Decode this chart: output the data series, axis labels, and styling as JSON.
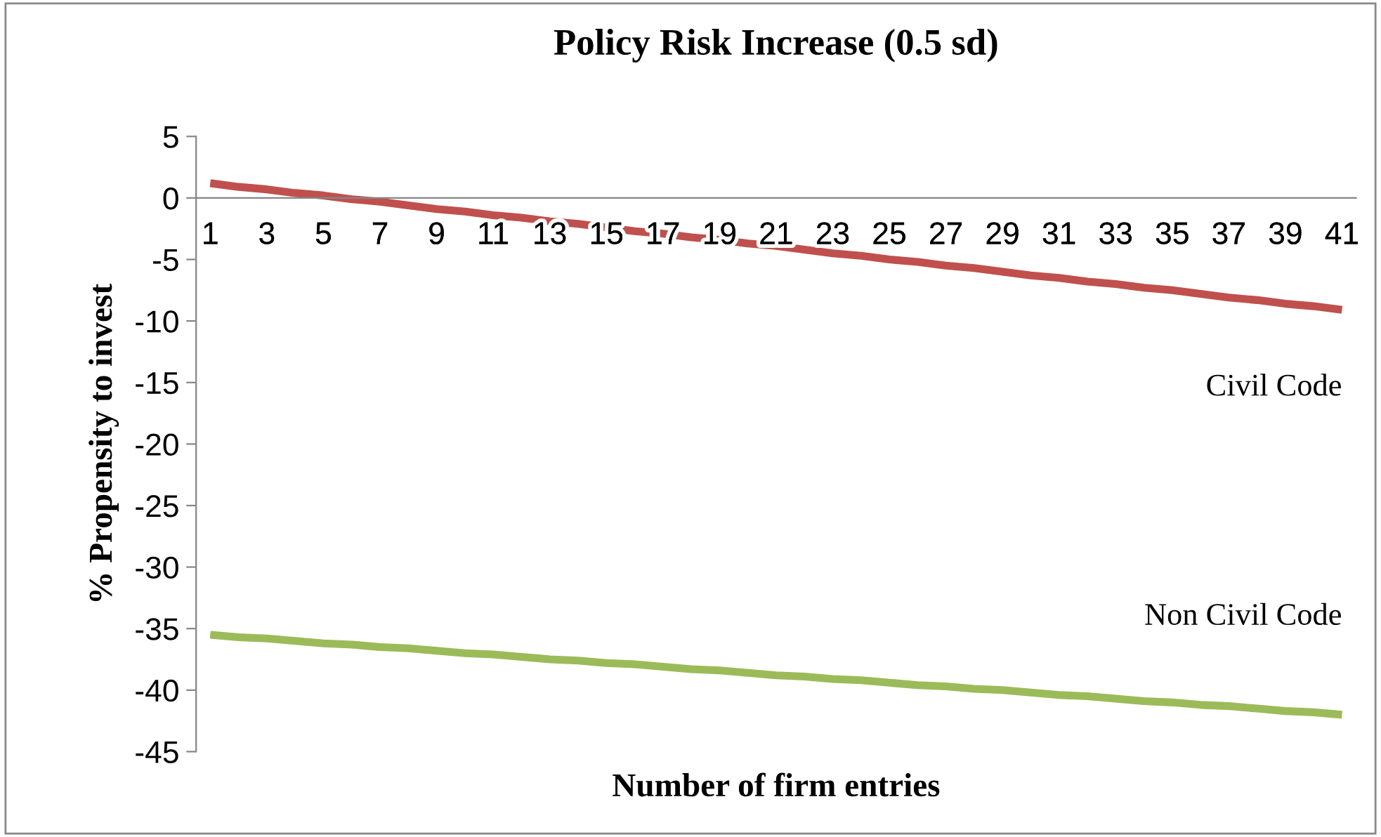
{
  "chart_data": {
    "type": "line",
    "title": "Policy Risk Increase (0.5 sd)",
    "xlabel": "Number of firm entries",
    "ylabel": "% Propensity to invest",
    "categories": [
      "1",
      null,
      "3",
      null,
      "5",
      null,
      "7",
      null,
      "9",
      null,
      "11",
      null,
      "13",
      null,
      "15",
      null,
      "17",
      null,
      "19",
      null,
      "21",
      null,
      "23",
      null,
      "25",
      null,
      "27",
      null,
      "29",
      null,
      "31",
      null,
      "33",
      null,
      "35",
      null,
      "37",
      null,
      "39",
      null,
      "41"
    ],
    "ylim": [
      -45,
      5
    ],
    "yticks": [
      -45,
      -40,
      -35,
      -30,
      -25,
      -20,
      -15,
      -10,
      -5,
      0,
      5
    ],
    "grid": false,
    "legend": false,
    "marker": "none",
    "line_style": "solid",
    "series": [
      {
        "name": "Civil Code",
        "color": "#c0504d",
        "values": [
          1.2,
          0.9,
          0.7,
          0.4,
          0.2,
          -0.1,
          -0.3,
          -0.6,
          -0.9,
          -1.1,
          -1.4,
          -1.6,
          -1.9,
          -2.1,
          -2.4,
          -2.7,
          -2.9,
          -3.2,
          -3.4,
          -3.7,
          -3.9,
          -4.2,
          -4.5,
          -4.7,
          -5.0,
          -5.2,
          -5.5,
          -5.7,
          -6.0,
          -6.3,
          -6.5,
          -6.8,
          -7.0,
          -7.3,
          -7.5,
          -7.8,
          -8.1,
          -8.3,
          -8.6,
          -8.8,
          -9.1
        ]
      },
      {
        "name": "Non Civil Code",
        "color": "#9bbb59",
        "values": [
          -35.5,
          -35.7,
          -35.8,
          -36.0,
          -36.2,
          -36.3,
          -36.5,
          -36.6,
          -36.8,
          -37.0,
          -37.1,
          -37.3,
          -37.5,
          -37.6,
          -37.8,
          -37.9,
          -38.1,
          -38.3,
          -38.4,
          -38.6,
          -38.8,
          -38.9,
          -39.1,
          -39.2,
          -39.4,
          -39.6,
          -39.7,
          -39.9,
          -40.0,
          -40.2,
          -40.4,
          -40.5,
          -40.7,
          -40.9,
          -41.0,
          -41.2,
          -41.3,
          -41.5,
          -41.7,
          -41.8,
          -42.0
        ]
      }
    ]
  }
}
